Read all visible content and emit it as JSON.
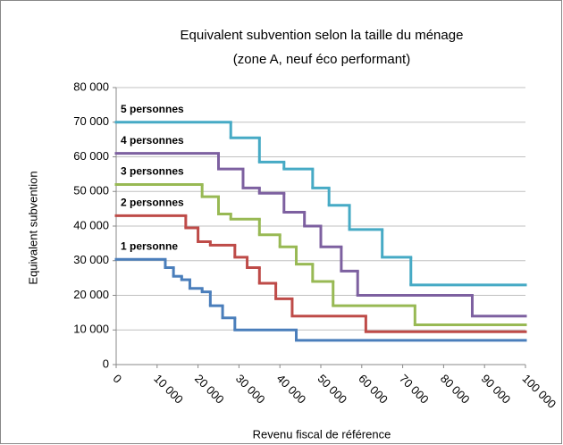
{
  "chart_data": {
    "type": "step",
    "title": "Equivalent subvention selon la taille du ménage",
    "subtitle": "(zone A, neuf éco performant)",
    "x_label": "Revenu fiscal de référence",
    "y_label": "Equivalent subvention",
    "xlim": [
      0,
      100000
    ],
    "ylim": [
      0,
      80000
    ],
    "xticks": [
      0,
      {
        "value": 10000,
        "label": "10 000"
      },
      {
        "value": 20000,
        "label": "20 000"
      },
      {
        "value": 30000,
        "label": "30 000"
      },
      {
        "value": 40000,
        "label": "40 000"
      },
      {
        "value": 50000,
        "label": "50 000"
      },
      {
        "value": 60000,
        "label": "60 000"
      },
      {
        "value": 70000,
        "label": "70 000"
      },
      {
        "value": 80000,
        "label": "80 000"
      },
      {
        "value": 90000,
        "label": "90 000"
      },
      {
        "value": 100000,
        "label": "100 000"
      }
    ],
    "yticks": [
      0,
      {
        "value": 10000,
        "label": "10 000"
      },
      {
        "value": 20000,
        "label": "20 000"
      },
      {
        "value": 30000,
        "label": "30 000"
      },
      {
        "value": 40000,
        "label": "40 000"
      },
      {
        "value": 50000,
        "label": "50 000"
      },
      {
        "value": 60000,
        "label": "60 000"
      },
      {
        "value": 70000,
        "label": "70 000"
      },
      {
        "value": 80000,
        "label": "80 000"
      }
    ],
    "grid": true,
    "series": [
      {
        "name": "1 personne",
        "color": "#4a7ebb",
        "x": [
          0,
          12000,
          14000,
          16000,
          18000,
          21000,
          23000,
          26000,
          29000,
          44000
        ],
        "values": [
          30400,
          28000,
          25500,
          24500,
          22000,
          21000,
          17000,
          13500,
          10000,
          7000
        ]
      },
      {
        "name": "2 personnes",
        "color": "#be4b48",
        "x": [
          0,
          17000,
          20000,
          23000,
          29000,
          32000,
          35000,
          39000,
          43000,
          61000
        ],
        "values": [
          43000,
          39500,
          35500,
          34500,
          31000,
          28000,
          23500,
          19000,
          14000,
          9500
        ]
      },
      {
        "name": "3 personnes",
        "color": "#98b954",
        "x": [
          0,
          21000,
          25000,
          28000,
          35000,
          40000,
          44000,
          48000,
          53000,
          73000
        ],
        "values": [
          52000,
          48500,
          43500,
          42000,
          37500,
          34000,
          29000,
          24000,
          17000,
          11500
        ]
      },
      {
        "name": "4 personnes",
        "color": "#7d60a0",
        "x": [
          0,
          25000,
          31000,
          35000,
          41000,
          46000,
          50000,
          55000,
          59000,
          87000
        ],
        "values": [
          61000,
          56500,
          51000,
          49500,
          44000,
          40000,
          34000,
          27000,
          20000,
          14000
        ]
      },
      {
        "name": "5 personnes",
        "color": "#46aac5",
        "x": [
          0,
          28000,
          35000,
          41000,
          48000,
          52000,
          57000,
          65000,
          72000
        ],
        "values": [
          70000,
          65500,
          58500,
          56500,
          51000,
          46000,
          39000,
          31000,
          23000
        ]
      }
    ]
  }
}
